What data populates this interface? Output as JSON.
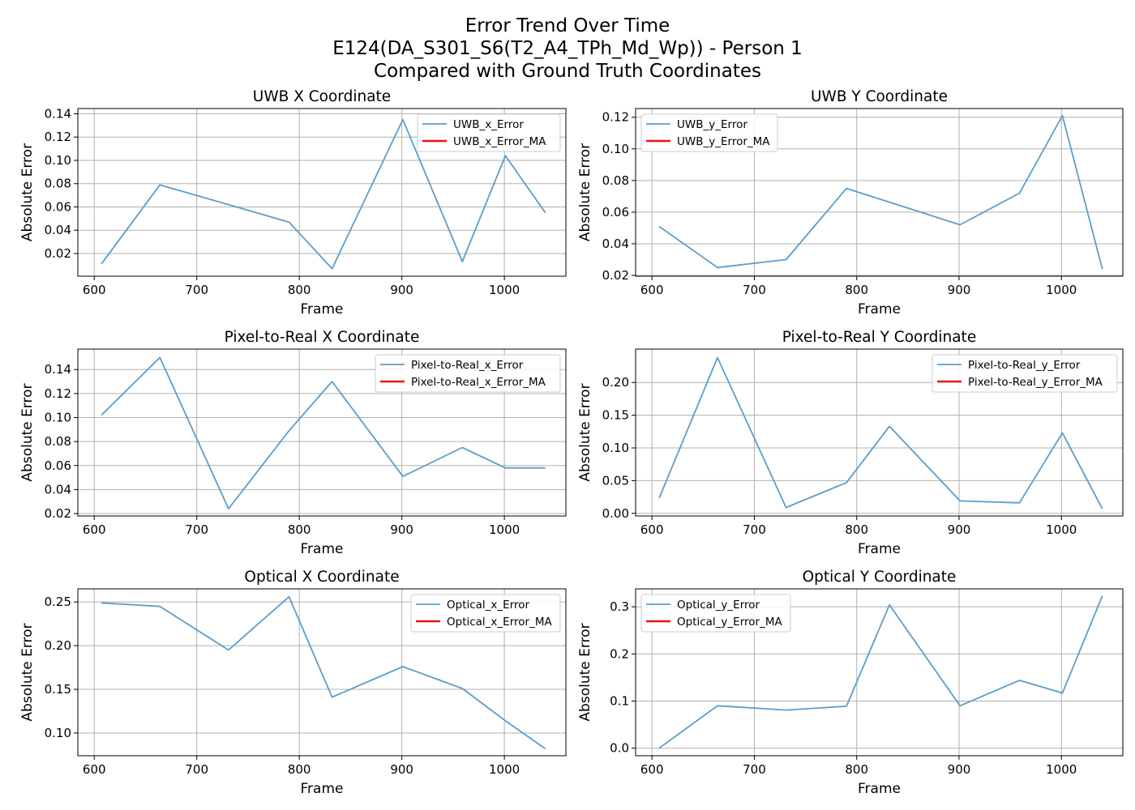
{
  "figure": {
    "title_lines": [
      "Error Trend Over Time",
      "E124(DA_S301_S6(T2_A4_TPh_Md_Wp)) - Person 1",
      "Compared with Ground Truth Coordinates"
    ]
  },
  "colors": {
    "error": "#5a9ec9",
    "error_ma": "#ee1111"
  },
  "chart_data": [
    {
      "type": "line",
      "title": "UWB X Coordinate",
      "xlabel": "Frame",
      "ylabel": "Absolute Error",
      "grid": true,
      "legend_position": "upper-right",
      "xlim": [
        584,
        1060
      ],
      "xticks": [
        600,
        700,
        800,
        900,
        1000
      ],
      "ylim": [
        0.0005,
        0.1445
      ],
      "yticks": [
        0.02,
        0.04,
        0.06,
        0.08,
        0.1,
        0.12,
        0.14
      ],
      "ytick_labels": [
        "0.02",
        "0.04",
        "0.06",
        "0.08",
        "0.10",
        "0.12",
        "0.14"
      ],
      "series": [
        {
          "name": "UWB_x_Error",
          "x": [
            607,
            664,
            790,
            832,
            901,
            959,
            1001,
            1040
          ],
          "values": [
            0.011,
            0.079,
            0.047,
            0.007,
            0.135,
            0.013,
            0.104,
            0.055
          ]
        },
        {
          "name": "UWB_x_Error_MA",
          "x": [],
          "values": []
        }
      ]
    },
    {
      "type": "line",
      "title": "UWB Y Coordinate",
      "xlabel": "Frame",
      "ylabel": "Absolute Error",
      "grid": true,
      "legend_position": "upper-left",
      "xlim": [
        584,
        1060
      ],
      "xticks": [
        600,
        700,
        800,
        900,
        1000
      ],
      "ylim": [
        0.0195,
        0.1255
      ],
      "yticks": [
        0.02,
        0.04,
        0.06,
        0.08,
        0.1,
        0.12
      ],
      "ytick_labels": [
        "0.02",
        "0.04",
        "0.06",
        "0.08",
        "0.10",
        "0.12"
      ],
      "series": [
        {
          "name": "UWB_y_Error",
          "x": [
            607,
            664,
            731,
            790,
            901,
            959,
            1001,
            1040
          ],
          "values": [
            0.051,
            0.025,
            0.03,
            0.075,
            0.052,
            0.072,
            0.121,
            0.024
          ]
        },
        {
          "name": "UWB_y_Error_MA",
          "x": [],
          "values": []
        }
      ]
    },
    {
      "type": "line",
      "title": "Pixel-to-Real X Coordinate",
      "xlabel": "Frame",
      "ylabel": "Absolute Error",
      "grid": true,
      "legend_position": "upper-right",
      "xlim": [
        584,
        1060
      ],
      "xticks": [
        600,
        700,
        800,
        900,
        1000
      ],
      "ylim": [
        0.018,
        0.157
      ],
      "yticks": [
        0.02,
        0.04,
        0.06,
        0.08,
        0.1,
        0.12,
        0.14
      ],
      "ytick_labels": [
        "0.02",
        "0.04",
        "0.06",
        "0.08",
        "0.10",
        "0.12",
        "0.14"
      ],
      "series": [
        {
          "name": "Pixel-to-Real_x_Error",
          "x": [
            607,
            664,
            731,
            790,
            832,
            901,
            959,
            1001,
            1040
          ],
          "values": [
            0.102,
            0.15,
            0.024,
            0.089,
            0.13,
            0.051,
            0.075,
            0.058,
            0.058
          ]
        },
        {
          "name": "Pixel-to-Real_x_Error_MA",
          "x": [],
          "values": []
        }
      ]
    },
    {
      "type": "line",
      "title": "Pixel-to-Real Y Coordinate",
      "xlabel": "Frame",
      "ylabel": "Absolute Error",
      "grid": true,
      "legend_position": "upper-right",
      "xlim": [
        584,
        1060
      ],
      "xticks": [
        600,
        700,
        800,
        900,
        1000
      ],
      "ylim": [
        -0.004,
        0.251
      ],
      "yticks": [
        0.0,
        0.05,
        0.1,
        0.15,
        0.2
      ],
      "ytick_labels": [
        "0.00",
        "0.05",
        "0.10",
        "0.15",
        "0.20"
      ],
      "series": [
        {
          "name": "Pixel-to-Real_y_Error",
          "x": [
            607,
            664,
            731,
            790,
            832,
            901,
            959,
            1001,
            1040
          ],
          "values": [
            0.023,
            0.238,
            0.009,
            0.047,
            0.133,
            0.019,
            0.016,
            0.123,
            0.007
          ]
        },
        {
          "name": "Pixel-to-Real_y_Error_MA",
          "x": [],
          "values": []
        }
      ]
    },
    {
      "type": "line",
      "title": "Optical X Coordinate",
      "xlabel": "Frame",
      "ylabel": "Absolute Error",
      "grid": true,
      "legend_position": "upper-right",
      "xlim": [
        584,
        1060
      ],
      "xticks": [
        600,
        700,
        800,
        900,
        1000
      ],
      "ylim": [
        0.074,
        0.265
      ],
      "yticks": [
        0.1,
        0.15,
        0.2,
        0.25
      ],
      "ytick_labels": [
        "0.10",
        "0.15",
        "0.20",
        "0.25"
      ],
      "series": [
        {
          "name": "Optical_x_Error",
          "x": [
            607,
            664,
            731,
            790,
            832,
            901,
            959,
            1001,
            1040
          ],
          "values": [
            0.249,
            0.245,
            0.195,
            0.256,
            0.141,
            0.176,
            0.151,
            0.114,
            0.082
          ]
        },
        {
          "name": "Optical_x_Error_MA",
          "x": [],
          "values": []
        }
      ]
    },
    {
      "type": "line",
      "title": "Optical Y Coordinate",
      "xlabel": "Frame",
      "ylabel": "Absolute Error",
      "grid": true,
      "legend_position": "upper-left",
      "xlim": [
        584,
        1060
      ],
      "xticks": [
        600,
        700,
        800,
        900,
        1000
      ],
      "ylim": [
        -0.016,
        0.338
      ],
      "yticks": [
        0.0,
        0.1,
        0.2,
        0.3
      ],
      "ytick_labels": [
        "0.0",
        "0.1",
        "0.2",
        "0.3"
      ],
      "series": [
        {
          "name": "Optical_y_Error",
          "x": [
            607,
            664,
            731,
            790,
            832,
            901,
            959,
            1001,
            1040
          ],
          "values": [
            0.0,
            0.09,
            0.081,
            0.089,
            0.304,
            0.09,
            0.144,
            0.117,
            0.323
          ]
        },
        {
          "name": "Optical_y_Error_MA",
          "x": [],
          "values": []
        }
      ]
    }
  ]
}
